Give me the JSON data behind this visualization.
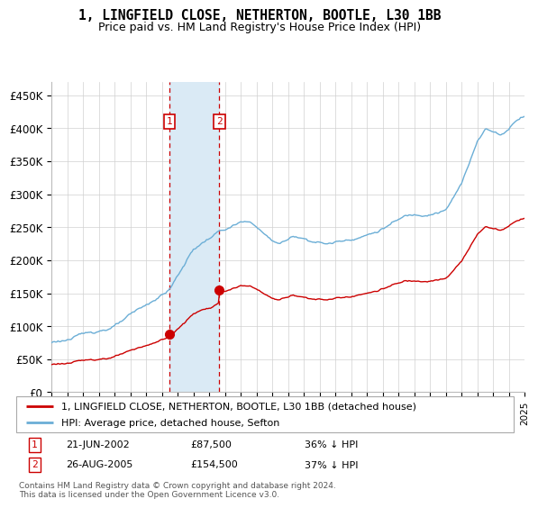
{
  "title": "1, LINGFIELD CLOSE, NETHERTON, BOOTLE, L30 1BB",
  "subtitle": "Price paid vs. HM Land Registry's House Price Index (HPI)",
  "legend_entry1": "1, LINGFIELD CLOSE, NETHERTON, BOOTLE, L30 1BB (detached house)",
  "legend_entry2": "HPI: Average price, detached house, Sefton",
  "annotation1_date": "21-JUN-2002",
  "annotation1_price": "£87,500",
  "annotation1_hpi": "36% ↓ HPI",
  "annotation1_year": 2002.47,
  "annotation1_value_red": 87500,
  "annotation2_date": "26-AUG-2005",
  "annotation2_price": "£154,500",
  "annotation2_hpi": "37% ↓ HPI",
  "annotation2_year": 2005.65,
  "annotation2_value_red": 154500,
  "footer": "Contains HM Land Registry data © Crown copyright and database right 2024.\nThis data is licensed under the Open Government Licence v3.0.",
  "hpi_color": "#6baed6",
  "price_color": "#cc0000",
  "shade_color": "#daeaf5",
  "annotation_box_color": "#cc0000",
  "ylim": [
    0,
    470000
  ],
  "yticks": [
    0,
    50000,
    100000,
    150000,
    200000,
    250000,
    300000,
    350000,
    400000,
    450000
  ],
  "ytick_labels": [
    "£0",
    "£50K",
    "£100K",
    "£150K",
    "£200K",
    "£250K",
    "£300K",
    "£350K",
    "£400K",
    "£450K"
  ],
  "year_start": 1995,
  "year_end": 2025
}
